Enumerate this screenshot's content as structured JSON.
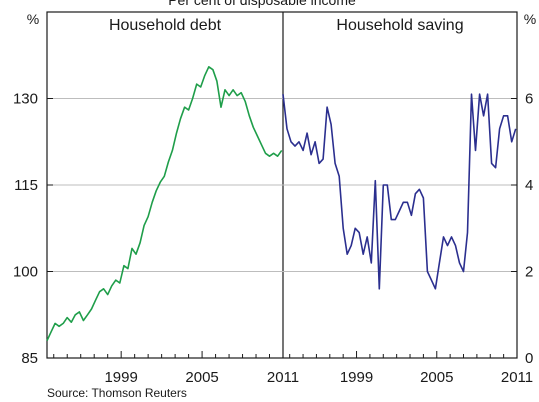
{
  "chart_data": {
    "type": "line",
    "subtitle": "Per cent of disposable income",
    "source": "Source: Thomson Reuters",
    "left_unit": "%",
    "right_unit": "%",
    "panels": [
      {
        "title": "Household debt",
        "x_tick_labels": [
          "1999",
          "2005",
          "2011"
        ],
        "x_ticks": [
          1999,
          2005,
          2011
        ],
        "xlim": [
          1993.5,
          2011
        ],
        "y_axis": "left",
        "ylim": [
          85,
          145
        ],
        "y_ticks": [
          85,
          100,
          115,
          130
        ],
        "y_tick_labels": [
          "85",
          "100",
          "115",
          "130"
        ],
        "series": [
          {
            "color": "#1f9e4a",
            "x": [
              1993.5,
              1993.8,
              1994.1,
              1994.4,
              1994.7,
              1995.0,
              1995.3,
              1995.6,
              1995.9,
              1996.2,
              1996.5,
              1996.8,
              1997.1,
              1997.4,
              1997.7,
              1998.0,
              1998.3,
              1998.6,
              1998.9,
              1999.2,
              1999.5,
              1999.8,
              2000.1,
              2000.4,
              2000.7,
              2001.0,
              2001.3,
              2001.6,
              2001.9,
              2002.2,
              2002.5,
              2002.8,
              2003.1,
              2003.4,
              2003.7,
              2004.0,
              2004.3,
              2004.6,
              2004.9,
              2005.2,
              2005.5,
              2005.8,
              2006.1,
              2006.4,
              2006.7,
              2007.0,
              2007.3,
              2007.6,
              2007.9,
              2008.2,
              2008.5,
              2008.8,
              2009.1,
              2009.4,
              2009.7,
              2010.0,
              2010.3,
              2010.6,
              2010.9
            ],
            "y": [
              88.0,
              89.5,
              91.0,
              90.5,
              91.0,
              92.0,
              91.2,
              92.5,
              93.0,
              91.5,
              92.5,
              93.5,
              95.0,
              96.5,
              97.0,
              96.0,
              97.5,
              98.5,
              98.0,
              101.0,
              100.5,
              104.0,
              103.0,
              105.0,
              108.0,
              109.5,
              112.0,
              114.0,
              115.5,
              116.5,
              119.0,
              121.0,
              124.0,
              126.5,
              128.5,
              128.0,
              130.0,
              132.5,
              132.0,
              134.0,
              135.5,
              135.0,
              133.0,
              128.5,
              131.5,
              130.5,
              131.5,
              130.5,
              131.0,
              129.5,
              127.0,
              125.0,
              123.5,
              122.0,
              120.5,
              120.0,
              120.5,
              120.0,
              121.0
            ]
          }
        ]
      },
      {
        "title": "Household saving",
        "x_tick_labels": [
          "1999",
          "2005",
          "2011"
        ],
        "x_ticks": [
          1999,
          2005,
          2011
        ],
        "xlim": [
          1993.5,
          2011
        ],
        "y_axis": "right",
        "ylim": [
          0,
          8
        ],
        "y_ticks": [
          0,
          2,
          4,
          6
        ],
        "y_tick_labels": [
          "0",
          "2",
          "4",
          "6"
        ],
        "series": [
          {
            "color": "#2b2f8f",
            "x": [
              1993.5,
              1993.8,
              1994.1,
              1994.4,
              1994.7,
              1995.0,
              1995.3,
              1995.6,
              1995.9,
              1996.2,
              1996.5,
              1996.8,
              1997.1,
              1997.4,
              1997.7,
              1998.0,
              1998.3,
              1998.6,
              1998.9,
              1999.2,
              1999.5,
              1999.8,
              2000.1,
              2000.4,
              2000.7,
              2001.0,
              2001.3,
              2001.6,
              2001.9,
              2002.2,
              2002.5,
              2002.8,
              2003.1,
              2003.4,
              2003.7,
              2004.0,
              2004.3,
              2004.6,
              2004.9,
              2005.2,
              2005.5,
              2005.8,
              2006.1,
              2006.4,
              2006.7,
              2007.0,
              2007.3,
              2007.6,
              2007.9,
              2008.2,
              2008.5,
              2008.8,
              2009.1,
              2009.4,
              2009.7,
              2010.0,
              2010.3,
              2010.6,
              2010.9
            ],
            "y": [
              6.1,
              5.3,
              5.0,
              4.9,
              5.0,
              4.8,
              5.2,
              4.7,
              5.0,
              4.5,
              4.6,
              5.8,
              5.4,
              4.5,
              4.2,
              3.0,
              2.4,
              2.6,
              3.0,
              2.9,
              2.4,
              2.8,
              2.2,
              4.1,
              1.6,
              4.0,
              4.0,
              3.2,
              3.2,
              3.4,
              3.6,
              3.6,
              3.3,
              3.8,
              3.9,
              3.7,
              2.0,
              1.8,
              1.6,
              2.2,
              2.8,
              2.6,
              2.8,
              2.6,
              2.2,
              2.0,
              2.9,
              6.1,
              4.8,
              6.1,
              5.6,
              6.1,
              4.5,
              4.4,
              5.3,
              5.6,
              5.6,
              5.0,
              5.3
            ]
          }
        ]
      }
    ]
  }
}
